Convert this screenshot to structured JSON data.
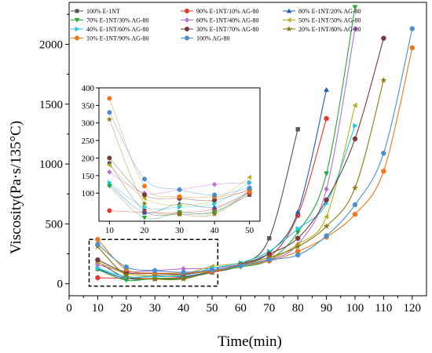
{
  "chart_data": {
    "type": "line",
    "xlabel": "Time(min)",
    "ylabel": "Viscosity(Pa·s/135°C)",
    "xlim": [
      0,
      125
    ],
    "ylim": [
      -100,
      2350
    ],
    "x_ticks": [
      0,
      10,
      20,
      30,
      40,
      50,
      60,
      70,
      80,
      90,
      100,
      110,
      120
    ],
    "y_ticks": [
      0,
      500,
      1000,
      1500,
      2000
    ],
    "legend_position": "top",
    "grid": false,
    "series": [
      {
        "name": "100% E-1NT",
        "color": "#555555",
        "marker": "square",
        "x": [
          10,
          20,
          30,
          40,
          50,
          60,
          70,
          80
        ],
        "y": [
          185,
          50,
          40,
          48,
          95,
          160,
          380,
          1290
        ]
      },
      {
        "name": "90% E-1NT/10% AG-80",
        "color": "#e8372e",
        "marker": "circle",
        "x": [
          10,
          20,
          30,
          40,
          50,
          60,
          70,
          80,
          90
        ],
        "y": [
          50,
          45,
          45,
          55,
          100,
          150,
          220,
          570,
          1380
        ]
      },
      {
        "name": "80% E-1NT/20% AG-80",
        "color": "#1f5fb4",
        "marker": "triangle-up",
        "x": [
          10,
          20,
          30,
          40,
          50,
          60,
          70,
          80,
          90
        ],
        "y": [
          125,
          45,
          70,
          60,
          105,
          160,
          260,
          600,
          1620
        ]
      },
      {
        "name": "70% E-1NT/30% AG-80",
        "color": "#23a83a",
        "marker": "triangle-down",
        "x": [
          10,
          20,
          30,
          40,
          50,
          60,
          70,
          80,
          90,
          100
        ],
        "y": [
          120,
          30,
          45,
          45,
          105,
          140,
          200,
          430,
          920,
          2310
        ]
      },
      {
        "name": "60% E-1NT/40% AG-80",
        "color": "#b870d8",
        "marker": "diamond",
        "x": [
          10,
          20,
          30,
          40,
          50,
          60,
          70,
          80,
          90,
          100
        ],
        "y": [
          160,
          100,
          110,
          125,
          130,
          160,
          200,
          330,
          790,
          2130
        ]
      },
      {
        "name": "50% E-1NT/50% AG-80",
        "color": "#b8b020",
        "marker": "triangle-left",
        "x": [
          10,
          20,
          30,
          40,
          50,
          60,
          70,
          80,
          90,
          100
        ],
        "y": [
          180,
          85,
          65,
          80,
          145,
          170,
          205,
          330,
          560,
          1490
        ]
      },
      {
        "name": "40% E-1NT/60% AG-80",
        "color": "#1ec8d8",
        "marker": "triangle-right",
        "x": [
          10,
          20,
          30,
          40,
          50,
          60,
          70,
          80,
          90,
          100
        ],
        "y": [
          130,
          60,
          60,
          70,
          130,
          175,
          270,
          460,
          670,
          1320
        ]
      },
      {
        "name": "30% E-1NT/70% AG-80",
        "color": "#7a3a3a",
        "marker": "circle",
        "x": [
          10,
          20,
          30,
          40,
          50,
          60,
          70,
          80,
          90,
          100,
          110
        ],
        "y": [
          200,
          95,
          85,
          80,
          110,
          160,
          250,
          380,
          700,
          1210,
          2050
        ]
      },
      {
        "name": "20% E-1NT/80% AG-80",
        "color": "#8a7a10",
        "marker": "star",
        "x": [
          10,
          20,
          30,
          40,
          50,
          60,
          70,
          80,
          90,
          100,
          110
        ],
        "y": [
          310,
          70,
          40,
          40,
          105,
          160,
          220,
          310,
          480,
          800,
          1700
        ]
      },
      {
        "name": "10% E-1NT/90% AG-80",
        "color": "#f07818",
        "marker": "circle",
        "x": [
          10,
          20,
          30,
          40,
          50,
          60,
          70,
          80,
          90,
          100,
          110,
          120
        ],
        "y": [
          370,
          120,
          90,
          90,
          105,
          150,
          190,
          270,
          390,
          580,
          940,
          1970
        ]
      },
      {
        "name": "100% AG-80",
        "color": "#4a90d0",
        "marker": "circle",
        "x": [
          10,
          20,
          30,
          40,
          50,
          60,
          70,
          80,
          90,
          100,
          110,
          120
        ],
        "y": [
          330,
          140,
          110,
          95,
          115,
          150,
          200,
          240,
          400,
          660,
          1090,
          2130
        ]
      }
    ],
    "inset": {
      "xlim": [
        7,
        53
      ],
      "ylim": [
        20,
        400
      ],
      "x_ticks": [
        10,
        20,
        30,
        40,
        50
      ],
      "y_ticks": [
        100,
        150,
        200,
        250,
        300,
        350,
        400
      ]
    }
  }
}
